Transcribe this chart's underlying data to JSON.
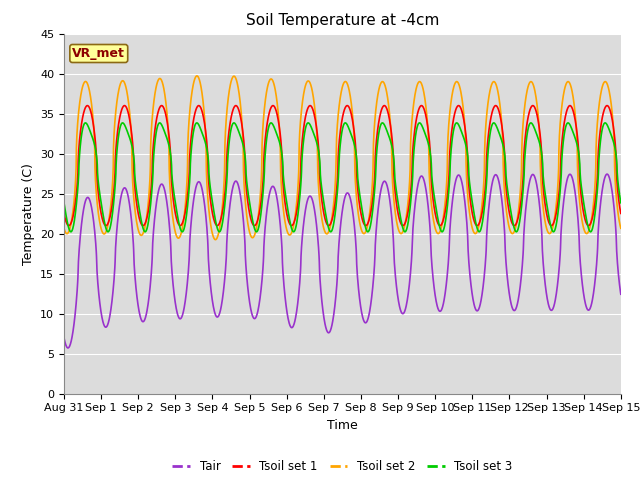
{
  "title": "Soil Temperature at -4cm",
  "xlabel": "Time",
  "ylabel": "Temperature (C)",
  "ylim": [
    0,
    45
  ],
  "yticks": [
    0,
    5,
    10,
    15,
    20,
    25,
    30,
    35,
    40,
    45
  ],
  "xtick_labels": [
    "Aug 31",
    "Sep 1",
    "Sep 2",
    "Sep 3",
    "Sep 4",
    "Sep 5",
    "Sep 6",
    "Sep 7",
    "Sep 8",
    "Sep 9",
    "Sep 10",
    "Sep 11",
    "Sep 12",
    "Sep 13",
    "Sep 14",
    "Sep 15"
  ],
  "annotation_text": "VR_met",
  "annotation_bg": "#FFFF99",
  "annotation_border": "#8B6914",
  "annotation_text_color": "#8B0000",
  "colors": {
    "Tair": "#9932CC",
    "Tsoil1": "#FF0000",
    "Tsoil2": "#FFA500",
    "Tsoil3": "#00CC00"
  },
  "legend_labels": [
    "Tair",
    "Tsoil set 1",
    "Tsoil set 2",
    "Tsoil set 3"
  ],
  "background_plot": "#DCDCDC",
  "background_fig": "#FFFFFF",
  "grid_color": "#FFFFFF",
  "title_fontsize": 11,
  "tick_fontsize": 8,
  "label_fontsize": 9
}
